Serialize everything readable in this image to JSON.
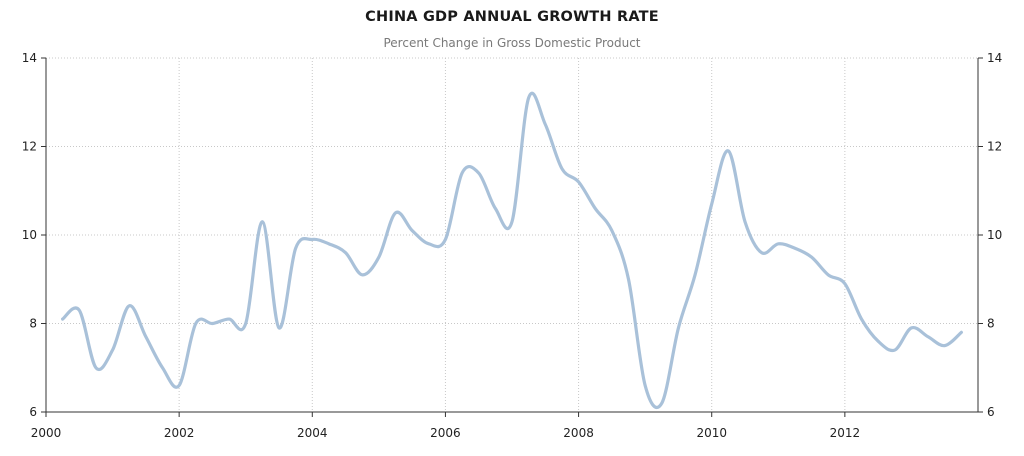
{
  "chart_data": {
    "type": "line",
    "title": "CHINA GDP ANNUAL GROWTH RATE",
    "subtitle": "Percent Change in Gross Domestic Product",
    "xlabel": "",
    "ylabel": "",
    "xlim": [
      2000,
      2014
    ],
    "ylim": [
      6,
      14
    ],
    "x_ticks": [
      "2000",
      "2002",
      "2004",
      "2006",
      "2008",
      "2010",
      "2012"
    ],
    "y_ticks": [
      "6",
      "8",
      "10",
      "12",
      "14"
    ],
    "grid": true,
    "legend": "none",
    "line_color": "#a9c1d9",
    "series": [
      {
        "x": [
          2000.25,
          2000.5,
          2000.75,
          2001.0,
          2001.25,
          2001.5,
          2001.75,
          2002.0,
          2002.25,
          2002.5,
          2002.75,
          2003.0,
          2003.25,
          2003.5,
          2003.75,
          2004.0,
          2004.25,
          2004.5,
          2004.75,
          2005.0,
          2005.25,
          2005.5,
          2005.75,
          2006.0,
          2006.25,
          2006.5,
          2006.75,
          2007.0,
          2007.25,
          2007.5,
          2007.75,
          2008.0,
          2008.25,
          2008.5,
          2008.75,
          2009.0,
          2009.25,
          2009.5,
          2009.75,
          2010.0,
          2010.25,
          2010.5,
          2010.75,
          2011.0,
          2011.25,
          2011.5,
          2011.75,
          2012.0,
          2012.25,
          2012.5,
          2012.75,
          2013.0,
          2013.25,
          2013.5,
          2013.75
        ],
        "values": [
          8.1,
          8.3,
          7.0,
          7.4,
          8.4,
          7.7,
          7.0,
          6.6,
          8.0,
          8.0,
          8.1,
          8.0,
          10.3,
          7.9,
          9.7,
          9.9,
          9.8,
          9.6,
          9.1,
          9.5,
          10.5,
          10.1,
          9.8,
          9.9,
          11.4,
          11.4,
          10.6,
          10.3,
          13.1,
          12.5,
          11.5,
          11.2,
          10.6,
          10.1,
          9.0,
          6.6,
          6.2,
          7.9,
          9.1,
          10.7,
          11.9,
          10.3,
          9.6,
          9.8,
          9.7,
          9.5,
          9.1,
          8.9,
          8.1,
          7.6,
          7.4,
          7.9,
          7.7,
          7.5,
          7.8
        ]
      }
    ]
  }
}
